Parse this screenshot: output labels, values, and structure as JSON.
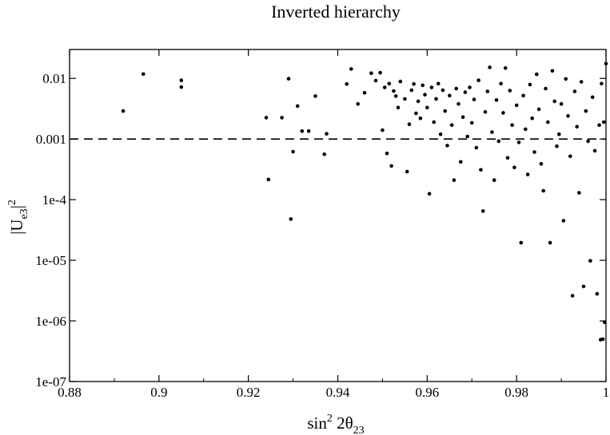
{
  "chart_data": {
    "type": "scatter",
    "title": "Inverted hierarchy",
    "xlabel": {
      "main": "sin",
      "sup": "2",
      "mid": " 2θ",
      "sub": "23"
    },
    "ylabel": {
      "open": "|U",
      "sub": "e3",
      "close": "|",
      "sup": "2"
    },
    "x_scale": "linear",
    "y_scale": "log",
    "xlim": [
      0.88,
      1.0
    ],
    "ylim": [
      1e-07,
      0.03
    ],
    "x_ticks": [
      0.88,
      0.9,
      0.92,
      0.94,
      0.96,
      0.98,
      1.0
    ],
    "x_tick_labels": [
      "0.88",
      "0.9",
      "0.92",
      "0.94",
      "0.96",
      "0.98",
      "1"
    ],
    "y_ticks": [
      1e-07,
      1e-06,
      1e-05,
      0.0001,
      0.001,
      0.01
    ],
    "y_tick_labels": [
      "1e-07",
      "1e-06",
      "1e-05",
      "1e-4",
      "0.001",
      "0.01"
    ],
    "reference_line": {
      "y": 0.001,
      "style": "dashed"
    },
    "points": [
      [
        0.892,
        0.0029
      ],
      [
        0.8965,
        0.0118
      ],
      [
        0.905,
        0.0093
      ],
      [
        0.905,
        0.0072
      ],
      [
        0.924,
        0.00225
      ],
      [
        0.9245,
        0.000215
      ],
      [
        0.9275,
        0.00225
      ],
      [
        0.929,
        0.0099
      ],
      [
        0.9295,
        4.8e-05
      ],
      [
        0.93,
        0.00062
      ],
      [
        0.931,
        0.0035
      ],
      [
        0.932,
        0.00135
      ],
      [
        0.9335,
        0.00135
      ],
      [
        0.935,
        0.0051
      ],
      [
        0.937,
        0.00056
      ],
      [
        0.9375,
        0.00122
      ],
      [
        0.942,
        0.0081
      ],
      [
        0.943,
        0.0143
      ],
      [
        0.9445,
        0.0038
      ],
      [
        0.946,
        0.0058
      ],
      [
        0.9475,
        0.0122
      ],
      [
        0.9485,
        0.0092
      ],
      [
        0.9495,
        0.0124
      ],
      [
        0.95,
        0.0014
      ],
      [
        0.9505,
        0.0071
      ],
      [
        0.951,
        0.00058
      ],
      [
        0.9515,
        0.0082
      ],
      [
        0.952,
        0.00036
      ],
      [
        0.9525,
        0.0062
      ],
      [
        0.953,
        0.0051
      ],
      [
        0.9535,
        0.0033
      ],
      [
        0.954,
        0.0089
      ],
      [
        0.955,
        0.0046
      ],
      [
        0.9555,
        0.00029
      ],
      [
        0.956,
        0.00175
      ],
      [
        0.9565,
        0.0064
      ],
      [
        0.957,
        0.0081
      ],
      [
        0.9575,
        0.00265
      ],
      [
        0.958,
        0.0042
      ],
      [
        0.9585,
        0.0022
      ],
      [
        0.959,
        0.0077
      ],
      [
        0.9595,
        0.0054
      ],
      [
        0.96,
        0.0033
      ],
      [
        0.9605,
        0.000125
      ],
      [
        0.961,
        0.0071
      ],
      [
        0.9615,
        0.0019
      ],
      [
        0.962,
        0.0046
      ],
      [
        0.9625,
        0.0082
      ],
      [
        0.963,
        0.0012
      ],
      [
        0.9635,
        0.0064
      ],
      [
        0.964,
        0.0029
      ],
      [
        0.9645,
        0.00078
      ],
      [
        0.965,
        0.0052
      ],
      [
        0.9655,
        0.0017
      ],
      [
        0.966,
        0.00021
      ],
      [
        0.9665,
        0.0068
      ],
      [
        0.967,
        0.0038
      ],
      [
        0.9675,
        0.00042
      ],
      [
        0.968,
        0.0023
      ],
      [
        0.9685,
        0.0059
      ],
      [
        0.969,
        0.0011
      ],
      [
        0.9695,
        0.0071
      ],
      [
        0.97,
        0.00185
      ],
      [
        0.9705,
        0.0045
      ],
      [
        0.971,
        0.00072
      ],
      [
        0.9715,
        0.0093
      ],
      [
        0.972,
        0.00031
      ],
      [
        0.9725,
        6.5e-05
      ],
      [
        0.973,
        0.0028
      ],
      [
        0.9735,
        0.0061
      ],
      [
        0.974,
        0.0152
      ],
      [
        0.9745,
        0.0013
      ],
      [
        0.975,
        0.00021
      ],
      [
        0.9755,
        0.0044
      ],
      [
        0.976,
        0.00092
      ],
      [
        0.9765,
        0.0082
      ],
      [
        0.977,
        0.0027
      ],
      [
        0.9775,
        0.0148
      ],
      [
        0.978,
        0.00049
      ],
      [
        0.9785,
        0.0063
      ],
      [
        0.979,
        0.0017
      ],
      [
        0.9795,
        0.00034
      ],
      [
        0.98,
        0.0036
      ],
      [
        0.9805,
        0.00088
      ],
      [
        0.981,
        1.95e-05
      ],
      [
        0.9815,
        0.0052
      ],
      [
        0.982,
        0.00145
      ],
      [
        0.9825,
        0.00026
      ],
      [
        0.983,
        0.0079
      ],
      [
        0.9835,
        0.0022
      ],
      [
        0.984,
        0.00061
      ],
      [
        0.9845,
        0.0117
      ],
      [
        0.985,
        0.0031
      ],
      [
        0.9855,
        0.00039
      ],
      [
        0.986,
        0.00014
      ],
      [
        0.9865,
        0.0068
      ],
      [
        0.987,
        0.0019
      ],
      [
        0.9875,
        1.95e-05
      ],
      [
        0.988,
        0.0133
      ],
      [
        0.9885,
        0.0042
      ],
      [
        0.989,
        0.00076
      ],
      [
        0.9895,
        0.0012
      ],
      [
        0.99,
        0.0038
      ],
      [
        0.9905,
        4.5e-05
      ],
      [
        0.991,
        0.0098
      ],
      [
        0.9915,
        0.0024
      ],
      [
        0.992,
        0.00052
      ],
      [
        0.9925,
        2.6e-06
      ],
      [
        0.993,
        0.0061
      ],
      [
        0.9935,
        0.0016
      ],
      [
        0.994,
        0.00013
      ],
      [
        0.9945,
        0.0088
      ],
      [
        0.995,
        3.7e-06
      ],
      [
        0.9955,
        0.0029
      ],
      [
        0.996,
        0.00092
      ],
      [
        0.9965,
        9.8e-06
      ],
      [
        0.997,
        0.0049
      ],
      [
        0.9975,
        0.00064
      ],
      [
        0.998,
        2.8e-06
      ],
      [
        0.9985,
        0.0017
      ],
      [
        0.9988,
        4.9e-07
      ],
      [
        0.999,
        0.0082
      ],
      [
        0.9993,
        5e-07
      ],
      [
        0.9995,
        0.0019
      ],
      [
        0.9997,
        9.5e-07
      ],
      [
        1.0,
        0.0175
      ]
    ]
  }
}
